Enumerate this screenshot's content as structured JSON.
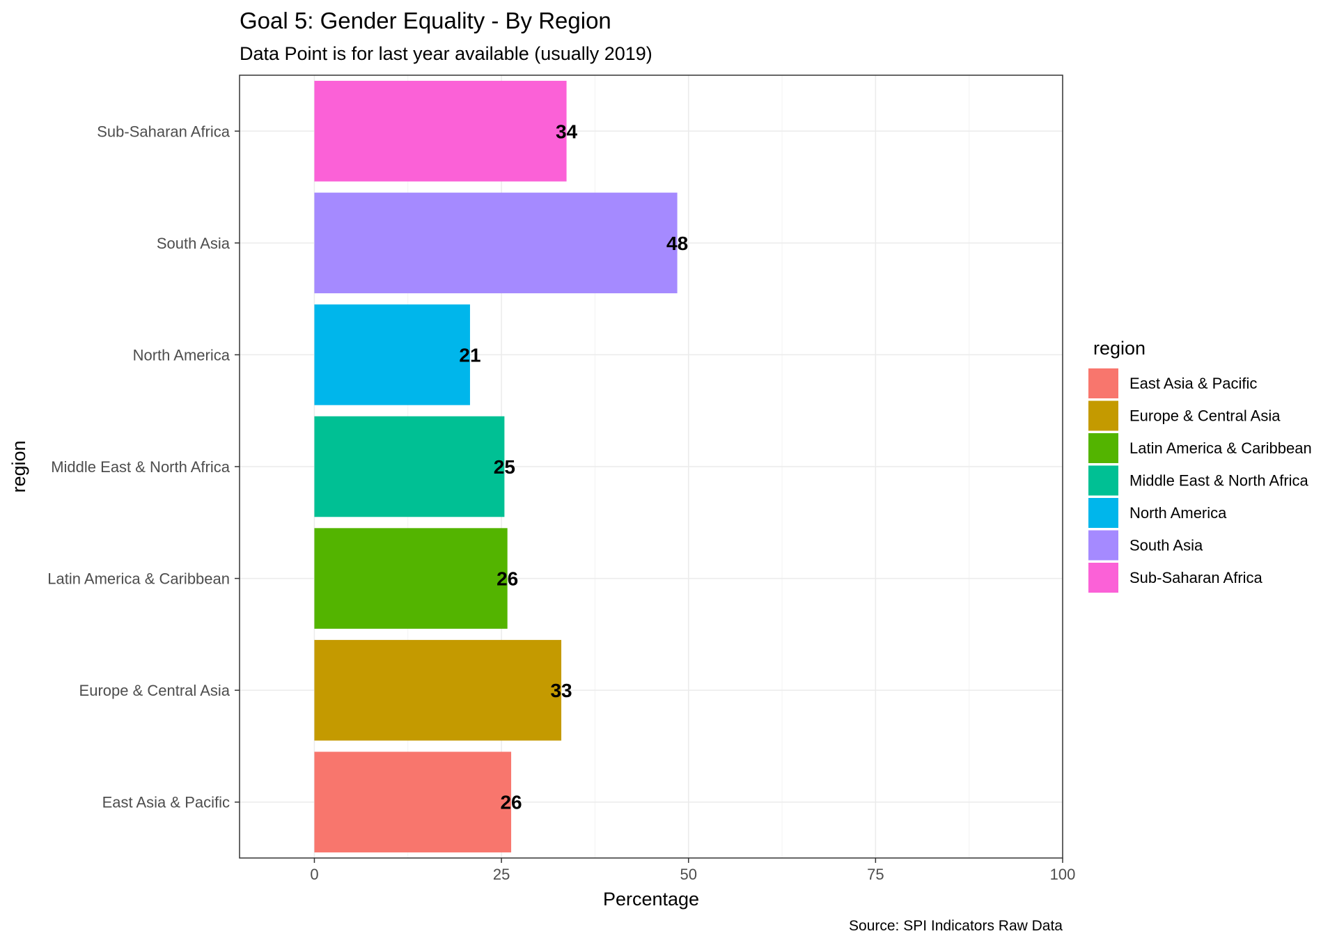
{
  "chart_data": {
    "type": "bar",
    "orientation": "horizontal",
    "title": "Goal 5: Gender Equality - By Region",
    "subtitle": "Data Point is for last year available (usually 2019)",
    "xlabel": "Percentage",
    "ylabel": "region",
    "caption": "Source: SPI Indicators Raw Data",
    "xlim": [
      -10,
      100
    ],
    "xticks": [
      0,
      25,
      50,
      75,
      100
    ],
    "grid": true,
    "legend": {
      "title": "region",
      "position": "right",
      "items": [
        "East Asia & Pacific",
        "Europe & Central Asia",
        "Latin America & Caribbean",
        "Middle East & North Africa",
        "North America",
        "South Asia",
        "Sub-Saharan Africa"
      ]
    },
    "categories": [
      "East Asia & Pacific",
      "Europe & Central Asia",
      "Latin America & Caribbean",
      "Middle East & North Africa",
      "North America",
      "South Asia",
      "Sub-Saharan Africa"
    ],
    "values": [
      26.3,
      33.0,
      25.8,
      25.4,
      20.8,
      48.5,
      33.7
    ],
    "data_labels": [
      "26",
      "33",
      "26",
      "25",
      "21",
      "48",
      "34"
    ],
    "colors": [
      "#F8766D",
      "#C49A00",
      "#53B400",
      "#00C094",
      "#00B6EB",
      "#A58AFF",
      "#FB61D7"
    ]
  }
}
